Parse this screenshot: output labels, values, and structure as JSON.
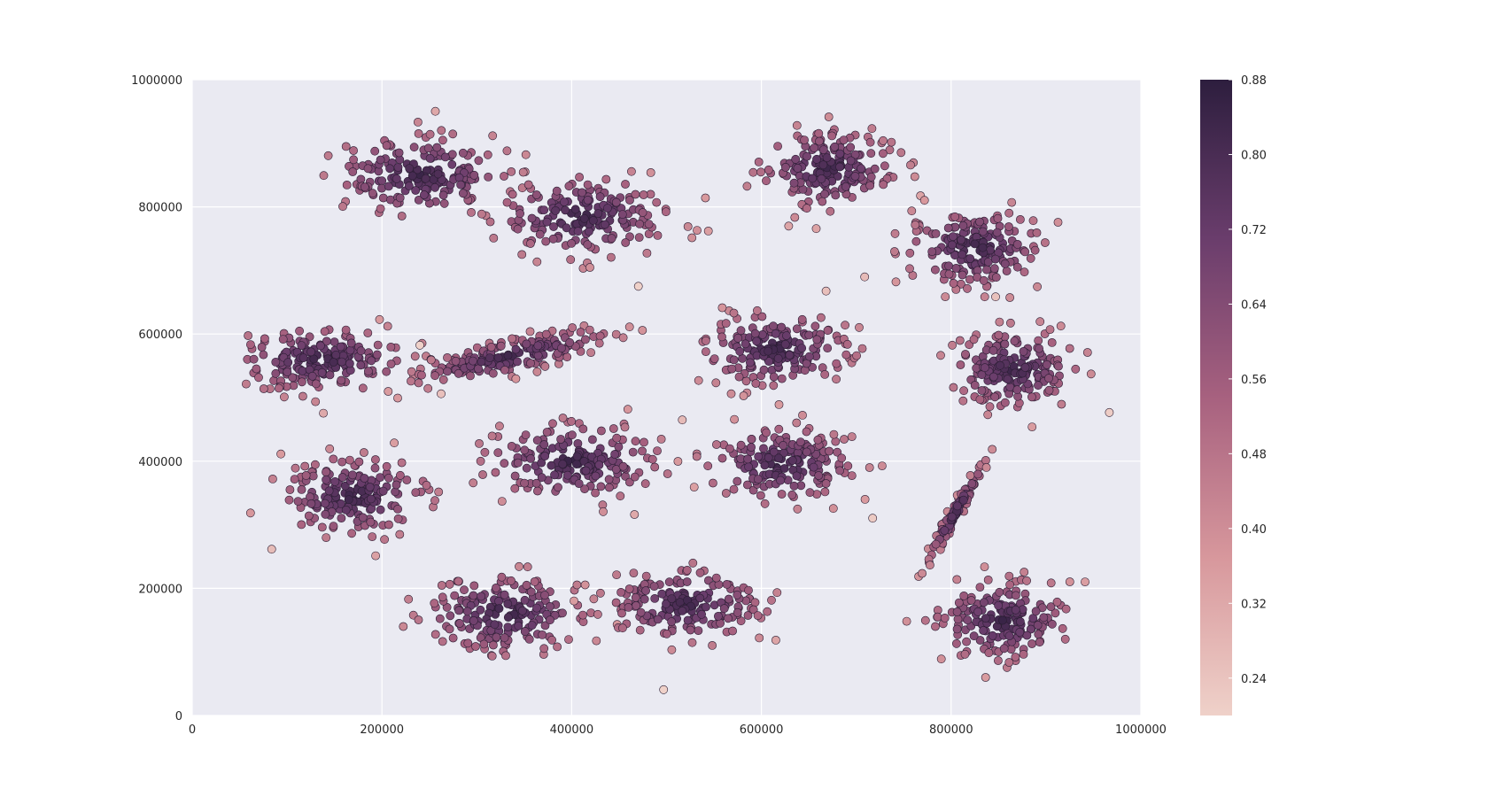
{
  "chart_data": {
    "type": "scatter",
    "title": "",
    "xlabel": "",
    "ylabel": "",
    "xlim": [
      0,
      1000000
    ],
    "ylim": [
      0,
      1000000
    ],
    "grid": true,
    "x_ticks": [
      0,
      200000,
      400000,
      600000,
      800000,
      1000000
    ],
    "x_tick_labels": [
      "0",
      "200000",
      "400000",
      "600000",
      "800000",
      "1000000"
    ],
    "y_ticks": [
      0,
      200000,
      400000,
      600000,
      800000,
      1000000
    ],
    "y_tick_labels": [
      "0",
      "200000",
      "400000",
      "600000",
      "800000",
      "1000000"
    ],
    "colorbar": {
      "range": [
        0.2,
        0.88
      ],
      "ticks": [
        0.24,
        0.32,
        0.4,
        0.48,
        0.56,
        0.64,
        0.72,
        0.8,
        0.88
      ],
      "tick_labels": [
        "0.24",
        "0.32",
        "0.40",
        "0.48",
        "0.56",
        "0.64",
        "0.72",
        "0.80",
        "0.88"
      ],
      "color_low": "#efd1c9",
      "color_high": "#2d1e3e"
    },
    "clusters": [
      {
        "cx": 240000,
        "cy": 850000,
        "sx": 45000,
        "sy": 32000,
        "rho": 0.0,
        "n": 180
      },
      {
        "cx": 410000,
        "cy": 785000,
        "sx": 45000,
        "sy": 30000,
        "rho": 0.0,
        "n": 180
      },
      {
        "cx": 670000,
        "cy": 860000,
        "sx": 35000,
        "sy": 30000,
        "rho": 0.0,
        "n": 180
      },
      {
        "cx": 825000,
        "cy": 735000,
        "sx": 35000,
        "sy": 30000,
        "rho": 0.0,
        "n": 180
      },
      {
        "cx": 135000,
        "cy": 560000,
        "sx": 45000,
        "sy": 25000,
        "rho": 0.0,
        "n": 180
      },
      {
        "cx": 335000,
        "cy": 565000,
        "sx": 48000,
        "sy": 20000,
        "rho": 0.75,
        "n": 180
      },
      {
        "cx": 615000,
        "cy": 575000,
        "sx": 38000,
        "sy": 28000,
        "rho": 0.0,
        "n": 180
      },
      {
        "cx": 865000,
        "cy": 545000,
        "sx": 32000,
        "sy": 30000,
        "rho": 0.0,
        "n": 180
      },
      {
        "cx": 170000,
        "cy": 345000,
        "sx": 38000,
        "sy": 30000,
        "rho": 0.0,
        "n": 180
      },
      {
        "cx": 400000,
        "cy": 400000,
        "sx": 45000,
        "sy": 30000,
        "rho": 0.0,
        "n": 180
      },
      {
        "cx": 620000,
        "cy": 395000,
        "sx": 38000,
        "sy": 28000,
        "rho": 0.0,
        "n": 180
      },
      {
        "cx": 805000,
        "cy": 320000,
        "sx": 14000,
        "sy": 36000,
        "rho": 0.97,
        "n": 120
      },
      {
        "cx": 330000,
        "cy": 160000,
        "sx": 42000,
        "sy": 30000,
        "rho": 0.0,
        "n": 180
      },
      {
        "cx": 520000,
        "cy": 175000,
        "sx": 40000,
        "sy": 28000,
        "rho": 0.0,
        "n": 180
      },
      {
        "cx": 855000,
        "cy": 150000,
        "sx": 35000,
        "sy": 30000,
        "rho": 0.0,
        "n": 180
      }
    ]
  }
}
